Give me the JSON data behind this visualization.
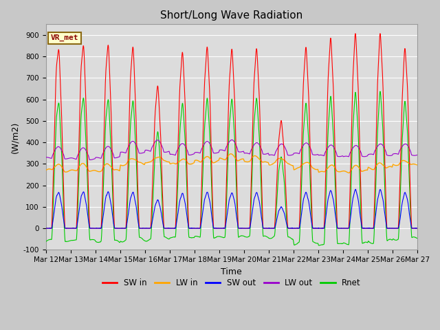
{
  "title": "Short/Long Wave Radiation",
  "ylabel": "(W/m2)",
  "xlabel": "Time",
  "ylim": [
    -100,
    950
  ],
  "xlim": [
    0,
    360
  ],
  "yticks": [
    -100,
    0,
    100,
    200,
    300,
    400,
    500,
    600,
    700,
    800,
    900
  ],
  "xtick_labels": [
    "Mar 12",
    "Mar 13",
    "Mar 14",
    "Mar 15",
    "Mar 16",
    "Mar 17",
    "Mar 18",
    "Mar 19",
    "Mar 20",
    "Mar 21",
    "Mar 22",
    "Mar 23",
    "Mar 24",
    "Mar 25",
    "Mar 26",
    "Mar 27"
  ],
  "xtick_positions": [
    0,
    24,
    48,
    72,
    96,
    120,
    144,
    168,
    192,
    216,
    240,
    264,
    288,
    312,
    336,
    360
  ],
  "colors": {
    "SW_in": "#ff0000",
    "LW_in": "#ffa500",
    "SW_out": "#0000ff",
    "LW_out": "#9900cc",
    "Rnet": "#00cc00"
  },
  "legend_label": "VR_met",
  "background_color": "#dcdcdc",
  "grid_color": "#ffffff",
  "title_fontsize": 11,
  "axis_fontsize": 9,
  "tick_fontsize": 7.5
}
